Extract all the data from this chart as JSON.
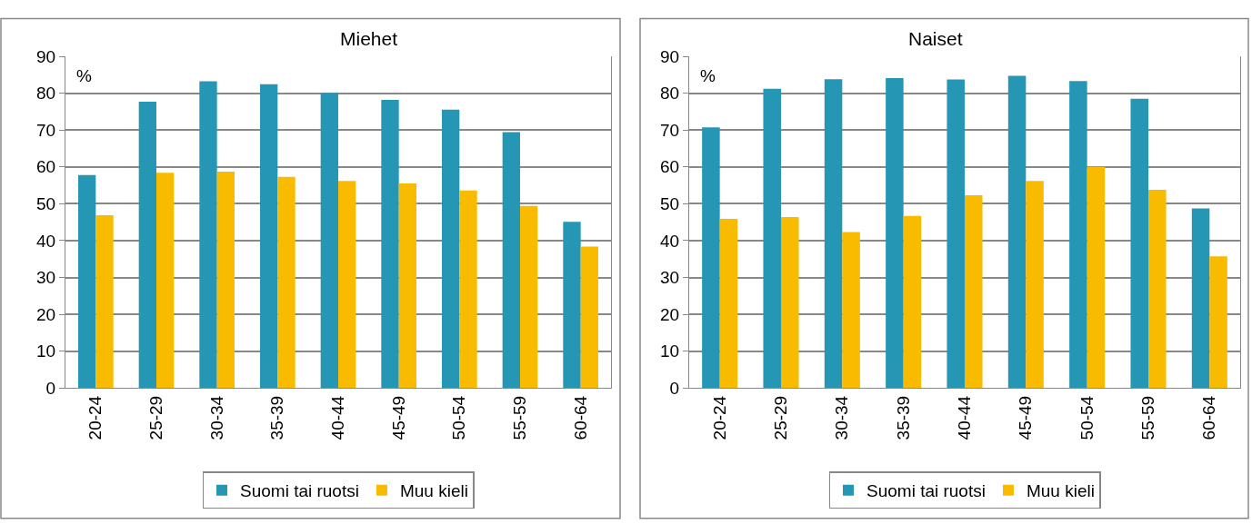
{
  "chart_data": [
    {
      "type": "bar",
      "title": "Miehet",
      "annotations": [
        "%"
      ],
      "categories": [
        "20-24",
        "25-29",
        "30-34",
        "35-39",
        "40-44",
        "45-49",
        "50-54",
        "55-59",
        "60-64"
      ],
      "series": [
        {
          "name": "Suomi tai ruotsi",
          "color": "#2596b4",
          "values": [
            57.8,
            77.7,
            83.2,
            82.4,
            80.1,
            78.2,
            75.5,
            69.4,
            45.1
          ]
        },
        {
          "name": "Muu kieli",
          "color": "#f8bb00",
          "values": [
            46.9,
            58.4,
            58.7,
            57.3,
            56.2,
            55.5,
            53.6,
            49.4,
            38.4
          ]
        }
      ],
      "ylim": [
        0,
        90
      ],
      "yticks": [
        0,
        10,
        20,
        30,
        40,
        50,
        60,
        70,
        80,
        90
      ],
      "grid": "y",
      "legend": "bottom"
    },
    {
      "type": "bar",
      "title": "Naiset",
      "annotations": [
        "%"
      ],
      "categories": [
        "20-24",
        "25-29",
        "30-34",
        "35-39",
        "40-44",
        "45-49",
        "50-54",
        "55-59",
        "60-64"
      ],
      "series": [
        {
          "name": "Suomi tai ruotsi",
          "color": "#2596b4",
          "values": [
            70.7,
            81.2,
            83.8,
            84.1,
            83.7,
            84.7,
            83.3,
            78.5,
            48.7
          ]
        },
        {
          "name": "Muu kieli",
          "color": "#f8bb00",
          "values": [
            45.9,
            46.4,
            42.3,
            46.7,
            52.3,
            56.2,
            60.0,
            53.8,
            35.7
          ]
        }
      ],
      "ylim": [
        0,
        90
      ],
      "yticks": [
        0,
        10,
        20,
        30,
        40,
        50,
        60,
        70,
        80,
        90
      ],
      "grid": "y",
      "legend": "bottom"
    }
  ]
}
